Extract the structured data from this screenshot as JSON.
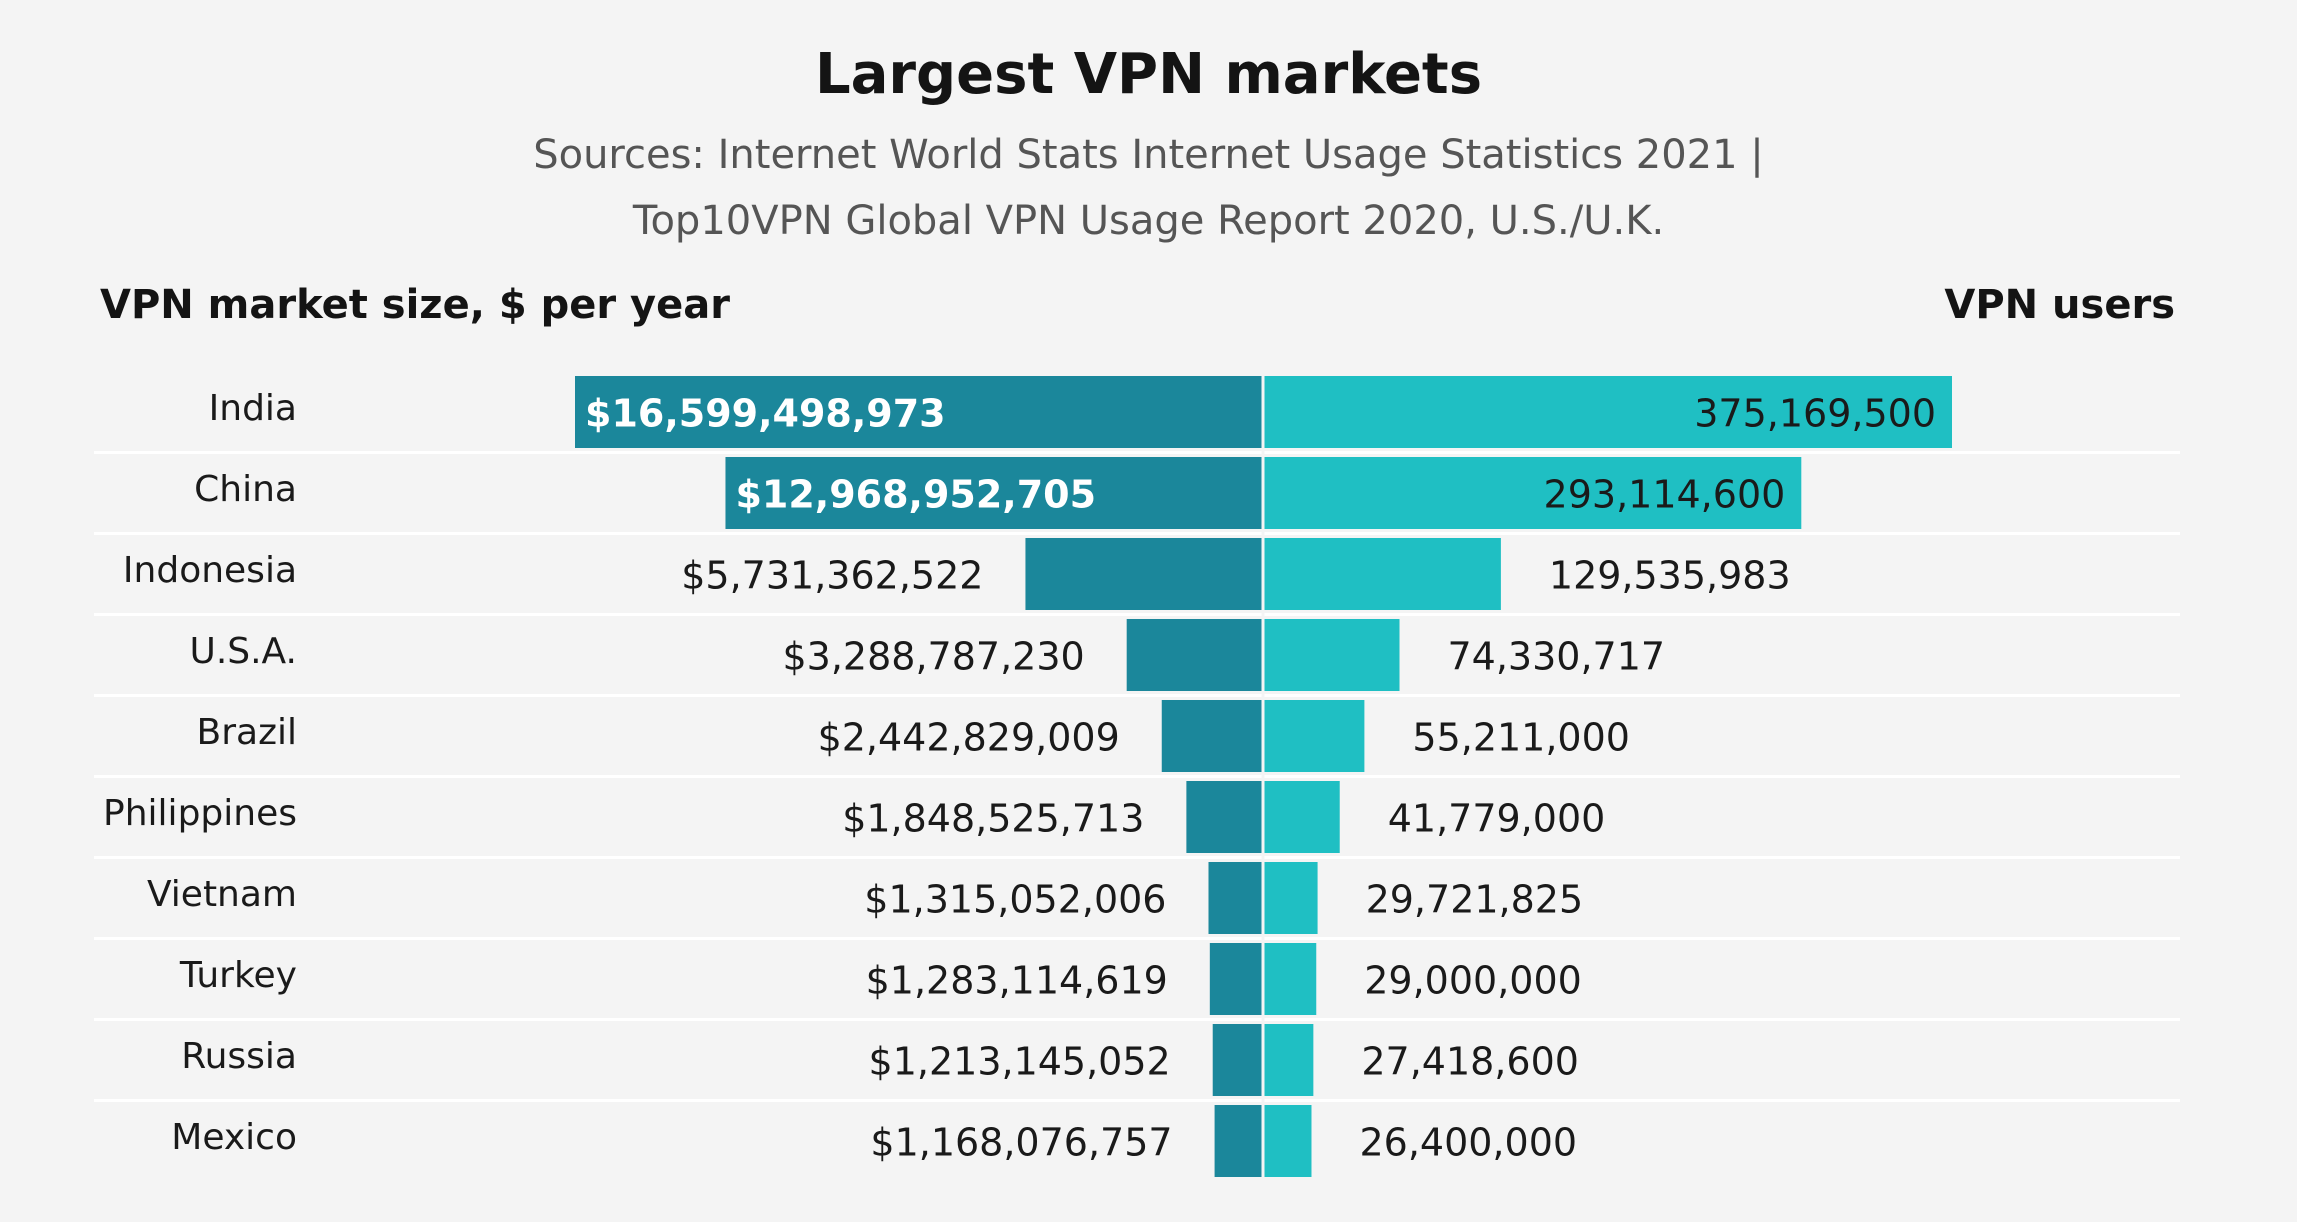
{
  "chart_data": {
    "type": "bar",
    "subtype": "back-to-back horizontal bar",
    "title": "Largest VPN markets",
    "subtitle_line1": "Sources: Internet World Stats Internet Usage Statistics 2021 |",
    "subtitle_line2": "Top10VPN Global VPN Usage Report 2020, U.S./U.K.",
    "left_heading": "VPN market size, $ per year",
    "right_heading": "VPN users",
    "categories": [
      "India",
      "China",
      "Indonesia",
      "U.S.A.",
      "Brazil",
      "Philippines",
      "Vietnam",
      "Turkey",
      "Russia",
      "Mexico"
    ],
    "series": [
      {
        "name": "VPN market size, $ per year",
        "side": "left",
        "color": "#1b879b",
        "values": [
          16599498973,
          12968952705,
          5731362522,
          3288787230,
          2442829009,
          1848525713,
          1315052006,
          1283114619,
          1213145052,
          1168076757
        ],
        "labels": [
          "$16,599,498,973",
          "$12,968,952,705",
          "$5,731,362,522",
          "$3,288,787,230",
          "$2,442,829,009",
          "$1,848,525,713",
          "$1,315,052,006",
          "$1,283,114,619",
          "$1,213,145,052",
          "$1,168,076,757"
        ],
        "max": 16599498973
      },
      {
        "name": "VPN users",
        "side": "right",
        "color": "#1fbfc3",
        "values": [
          375169500,
          293114600,
          129535983,
          74330717,
          55211000,
          41779000,
          29721825,
          29000000,
          27418600,
          26400000
        ],
        "labels": [
          "375,169,500",
          "293,114,600",
          "129,535,983",
          "74,330,717",
          "55,211,000",
          "41,779,000",
          "29,721,825",
          "29,000,000",
          "27,418,600",
          "26,400,000"
        ],
        "max": 375169500
      }
    ],
    "inside_label_count": 2,
    "grid": "row separators",
    "legend": "none"
  }
}
